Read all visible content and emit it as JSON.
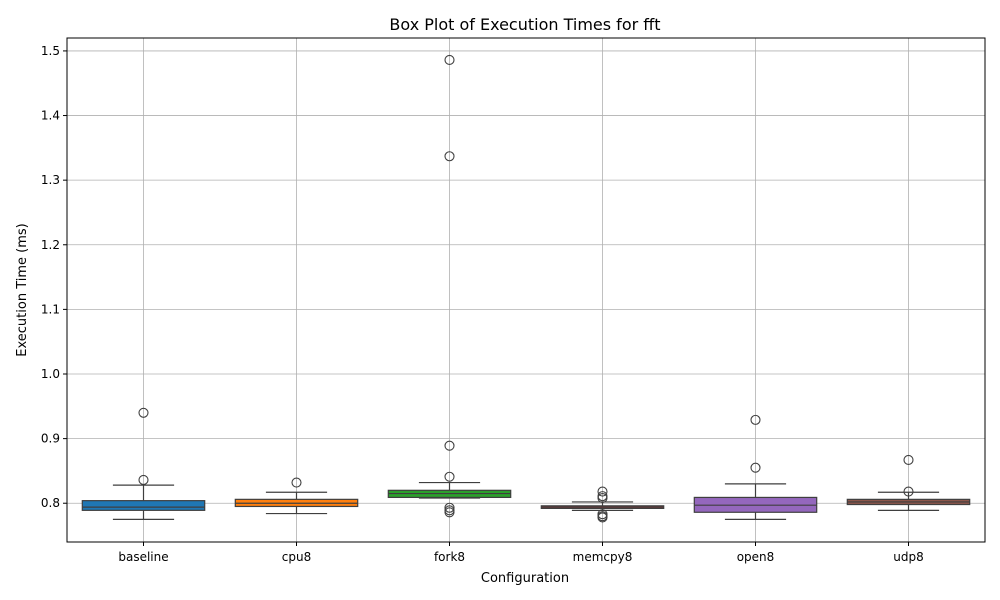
{
  "chart_data": {
    "type": "box",
    "title": "Box Plot of Execution Times for fft",
    "xlabel": "Configuration",
    "ylabel": "Execution Time (ms)",
    "ylim": [
      0.74,
      1.52
    ],
    "yticks": [
      0.8,
      0.9,
      1.0,
      1.1,
      1.2,
      1.3,
      1.4,
      1.5
    ],
    "ytick_labels": [
      "0.8",
      "0.9",
      "1.0",
      "1.1",
      "1.2",
      "1.3",
      "1.4",
      "1.5"
    ],
    "grid": true,
    "categories": [
      "baseline",
      "cpu8",
      "fork8",
      "memcpy8",
      "open8",
      "udp8"
    ],
    "boxes": [
      {
        "name": "baseline",
        "color": "#1f77b4",
        "whislo": 0.775,
        "q1": 0.789,
        "med": 0.794,
        "q3": 0.804,
        "whishi": 0.828,
        "fliers": [
          0.94,
          0.836
        ]
      },
      {
        "name": "cpu8",
        "color": "#ff7f0e",
        "whislo": 0.784,
        "q1": 0.795,
        "med": 0.8,
        "q3": 0.806,
        "whishi": 0.817,
        "fliers": [
          0.832
        ]
      },
      {
        "name": "fork8",
        "color": "#2ca02c",
        "whislo": 0.808,
        "q1": 0.809,
        "med": 0.815,
        "q3": 0.82,
        "whishi": 0.832,
        "fliers": [
          1.486,
          1.337,
          0.889,
          0.841,
          0.793,
          0.789,
          0.786
        ]
      },
      {
        "name": "memcpy8",
        "color": "#d62728",
        "whislo": 0.789,
        "q1": 0.792,
        "med": 0.794,
        "q3": 0.796,
        "whishi": 0.802,
        "fliers": [
          0.818,
          0.811,
          0.808,
          0.783,
          0.78,
          0.778
        ]
      },
      {
        "name": "open8",
        "color": "#9467bd",
        "whislo": 0.775,
        "q1": 0.786,
        "med": 0.797,
        "q3": 0.809,
        "whishi": 0.83,
        "fliers": [
          0.929,
          0.855
        ]
      },
      {
        "name": "udp8",
        "color": "#8c564b",
        "whislo": 0.789,
        "q1": 0.798,
        "med": 0.802,
        "q3": 0.806,
        "whishi": 0.817,
        "fliers": [
          0.867,
          0.818
        ]
      }
    ]
  }
}
